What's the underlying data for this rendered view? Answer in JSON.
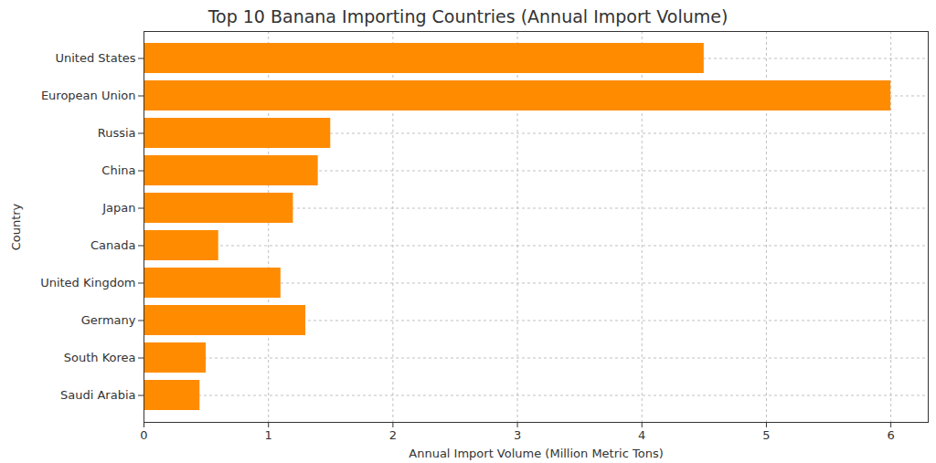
{
  "chart_data": {
    "type": "bar",
    "title": "Top 10 Banana Importing Countries (Annual Import Volume)",
    "x_label": "Annual Import Volume (Million Metric Tons)",
    "y_label": "Country",
    "orientation": "horizontal",
    "categories": [
      "United States",
      "European Union",
      "Russia",
      "China",
      "Japan",
      "Canada",
      "United Kingdom",
      "Germany",
      "South Korea",
      "Saudi Arabia"
    ],
    "values": [
      4.5,
      6.0,
      1.5,
      1.4,
      1.2,
      0.6,
      1.1,
      1.3,
      0.5,
      0.45
    ],
    "color": "#ff8c00",
    "xlim": [
      0,
      6.3
    ],
    "xticks": [
      0,
      1,
      2,
      3,
      4,
      5,
      6
    ],
    "grid": true
  }
}
